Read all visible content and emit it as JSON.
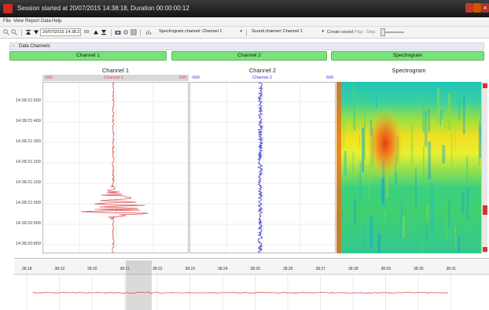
{
  "window": {
    "title": "Session started at 20/07/2015 14:38:18, Duration 00:00:00:12"
  },
  "menu": [
    "File",
    "View",
    "Report",
    "Data",
    "Help"
  ],
  "toolbar": {
    "datetime": "20/07/2015 14:38:21",
    "speed": "00:",
    "spectrogram_label": "Spectrogram channel: Channel 1",
    "sound_label": "Sound channel: Channel 1",
    "create_sound": "Create sound",
    "play": "Play",
    "stop": "Stop"
  },
  "section": {
    "label": "Data Channels"
  },
  "channel_buttons": [
    "Channel 1",
    "Channel 2",
    "Spectrogram"
  ],
  "panels": {
    "ch1": {
      "title": "Channel 1",
      "min": "-600",
      "name": "Channel 1",
      "max": "600",
      "color": "#e05050"
    },
    "ch2": {
      "title": "Channel 2",
      "min": "-600",
      "name": "Channel 2",
      "max": "600",
      "color": "#3a3ad0"
    },
    "spec": {
      "title": "Spectrogram"
    }
  },
  "y_ticks": [
    "14:38:21:500",
    "14:38:21:400",
    "14:38:21:300",
    "14:38:21:200",
    "14:38:21:100",
    "14:38:21:000",
    "14:38:20:900",
    "14:38:20:800"
  ],
  "timeline": {
    "ticks": [
      "38:18",
      "38:19",
      "38:20",
      "38:21",
      "38:22",
      "38:23",
      "38:24",
      "38:25",
      "38:26",
      "38:27",
      "38:28",
      "38:29",
      "38:30",
      "38:31"
    ]
  },
  "colors": {
    "accent_green": "#7be27b",
    "titlebar": "#222222",
    "signal_red": "#e05050",
    "signal_blue": "#3a3ad0"
  }
}
